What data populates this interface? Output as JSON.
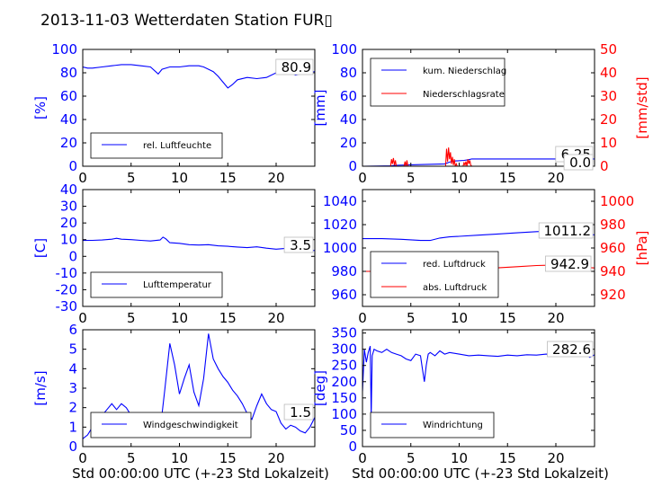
{
  "title": "2013-11-03 Wetterdaten Station FUR▯",
  "colors": {
    "primary": "#0000ff",
    "secondary": "#ff0000",
    "axis": "#000000"
  },
  "chart_data": [
    {
      "type": "line",
      "id": "humidity",
      "ylabel": "[%]",
      "xlabel": "",
      "xlim": [
        0,
        24
      ],
      "ylim": [
        0,
        100
      ],
      "xticks": [
        0,
        5,
        10,
        15,
        20
      ],
      "yticks": [
        0,
        20,
        40,
        60,
        80,
        100
      ],
      "legend": "bottom-left",
      "readout": "80.9",
      "series": [
        {
          "name": "rel. Luftfeuchte",
          "color": "#0000ff",
          "x": [
            0,
            0.5,
            1,
            2,
            3,
            4,
            5,
            6,
            7,
            7.8,
            8.2,
            9,
            10,
            11,
            12,
            12.5,
            13,
            13.5,
            14,
            14.5,
            15,
            15.5,
            16,
            17,
            18,
            19,
            20,
            21,
            22,
            23,
            24
          ],
          "y": [
            85,
            84,
            84,
            85,
            86,
            87,
            87,
            86,
            85,
            79,
            83,
            85,
            85,
            86,
            86,
            85,
            83,
            81,
            77,
            72,
            67,
            70,
            74,
            76,
            75,
            76,
            80,
            82,
            78,
            80,
            81
          ]
        }
      ]
    },
    {
      "type": "line",
      "id": "precip",
      "ylabel": "[mm]",
      "y2label": "[mm/std]",
      "xlabel": "",
      "xlim": [
        0,
        24
      ],
      "ylim": [
        0,
        100
      ],
      "y2lim": [
        0,
        50
      ],
      "xticks": [
        0,
        5,
        10,
        15,
        20
      ],
      "yticks": [
        0,
        20,
        40,
        60,
        80,
        100
      ],
      "y2ticks": [
        0,
        10,
        20,
        30,
        40,
        50
      ],
      "legend": "top-left",
      "readouts": [
        "6.25",
        "0.0"
      ],
      "series": [
        {
          "name": "kum. Niederschlag",
          "color": "#0000ff",
          "axis": "left",
          "x": [
            0,
            3,
            3.3,
            5,
            8.5,
            9,
            9.5,
            10.5,
            11,
            11.3,
            24
          ],
          "y": [
            0,
            0.3,
            0.8,
            1.2,
            2.0,
            3.5,
            4.5,
            5.0,
            5.6,
            6.25,
            6.25
          ]
        },
        {
          "name": "Niederschlagsrate",
          "color": "#ff0000",
          "axis": "right",
          "x": [
            0,
            2.9,
            3.0,
            3.1,
            3.2,
            3.3,
            3.4,
            3.5,
            3.6,
            4.3,
            4.4,
            4.5,
            4.6,
            4.7,
            8.6,
            8.7,
            8.8,
            8.9,
            9.0,
            9.1,
            9.2,
            9.3,
            9.4,
            9.5,
            9.6,
            9.7,
            9.8,
            10.4,
            10.5,
            10.6,
            10.7,
            10.8,
            10.9,
            11.0,
            11.1,
            11.2,
            11.3,
            24
          ],
          "y": [
            0,
            0,
            3,
            1,
            3.5,
            0.5,
            2.5,
            0,
            0,
            0,
            2,
            0,
            2.5,
            0,
            0,
            7.5,
            2,
            8,
            3,
            6,
            1,
            4,
            0.5,
            3,
            0,
            1,
            0,
            0,
            1.5,
            0.5,
            2,
            0,
            3,
            1,
            2.5,
            0.5,
            0,
            0
          ]
        }
      ]
    },
    {
      "type": "line",
      "id": "temperature",
      "ylabel": "[C]",
      "xlabel": "",
      "xlim": [
        0,
        24
      ],
      "ylim": [
        -30,
        40
      ],
      "xticks": [
        0,
        5,
        10,
        15,
        20
      ],
      "yticks": [
        -30,
        -20,
        -10,
        0,
        10,
        20,
        30,
        40
      ],
      "legend": "bottom-left",
      "readout": "3.5",
      "series": [
        {
          "name": "Lufttemperatur",
          "color": "#0000ff",
          "x": [
            0,
            1,
            2,
            3,
            3.5,
            4,
            5,
            6,
            7,
            8,
            8.3,
            8.6,
            9,
            10,
            11,
            12,
            13,
            14,
            15,
            16,
            17,
            18,
            19,
            20,
            21,
            22,
            23,
            24
          ],
          "y": [
            9.5,
            9.6,
            9.8,
            10.3,
            10.8,
            10.3,
            10,
            9.6,
            9.2,
            9.8,
            11.5,
            10.5,
            8.2,
            7.8,
            7.0,
            6.8,
            7.0,
            6.3,
            6.0,
            5.6,
            5.2,
            5.7,
            4.9,
            4.3,
            4.8,
            4.2,
            3.7,
            3.5
          ]
        }
      ]
    },
    {
      "type": "line",
      "id": "pressure",
      "ylabel": "",
      "y2label": "[hPa]",
      "xlabel": "",
      "xlim": [
        0,
        24
      ],
      "ylim": [
        950,
        1050
      ],
      "y2lim": [
        910,
        1010
      ],
      "xticks": [
        0,
        5,
        10,
        15,
        20
      ],
      "yticks": [
        960,
        980,
        1000,
        1020,
        1040
      ],
      "y2ticks": [
        920,
        940,
        960,
        980,
        1000
      ],
      "legend": "bottom-left",
      "readouts": [
        "1011.2",
        "942.9"
      ],
      "series": [
        {
          "name": "red. Luftdruck",
          "color": "#0000ff",
          "axis": "left",
          "x": [
            0,
            2,
            4,
            5,
            6,
            7,
            8,
            9,
            10,
            12,
            14,
            16,
            18,
            20,
            22,
            24
          ],
          "y": [
            1008,
            1008,
            1007.5,
            1007,
            1006.5,
            1006.5,
            1008.5,
            1009.5,
            1010,
            1011,
            1012,
            1013,
            1014,
            1014.5,
            1013,
            1011.2
          ]
        },
        {
          "name": "abs. Luftdruck",
          "color": "#ff0000",
          "axis": "right",
          "x": [
            0,
            2,
            4,
            5,
            6,
            7,
            8,
            9,
            10,
            12,
            14,
            16,
            18,
            20,
            22,
            24
          ],
          "y": [
            940,
            940,
            939.5,
            939,
            938.5,
            938.5,
            940,
            940.8,
            941.5,
            942,
            943,
            944,
            945,
            945.5,
            944,
            942.9
          ]
        }
      ]
    },
    {
      "type": "line",
      "id": "windspeed",
      "ylabel": "[m/s]",
      "xlabel": "Std 00:00:00 UTC (+-23 Std Lokalzeit)",
      "xlim": [
        0,
        24
      ],
      "ylim": [
        0,
        6
      ],
      "xticks": [
        0,
        5,
        10,
        15,
        20
      ],
      "yticks": [
        0,
        1,
        2,
        3,
        4,
        5,
        6
      ],
      "legend": "bottom-left",
      "readout": "1.5",
      "series": [
        {
          "name": "Windgeschwindigkeit",
          "color": "#0000ff",
          "x": [
            0,
            0.5,
            1,
            1.5,
            2,
            2.5,
            3,
            3.5,
            4,
            4.5,
            5,
            5.5,
            6,
            6.5,
            7,
            7.5,
            8,
            8.5,
            9,
            9.5,
            10,
            10.5,
            11,
            11.5,
            12,
            12.5,
            13,
            13.5,
            14,
            14.5,
            15,
            15.5,
            16,
            16.5,
            17,
            17.5,
            18,
            18.5,
            19,
            19.5,
            20,
            20.5,
            21,
            21.5,
            22,
            22.5,
            23,
            23.5,
            24
          ],
          "y": [
            0.4,
            0.6,
            1.0,
            1.2,
            1.6,
            1.9,
            2.2,
            1.9,
            2.2,
            2.0,
            1.6,
            1.2,
            1.0,
            0.9,
            0.8,
            0.7,
            0.8,
            3.0,
            5.3,
            4.2,
            2.7,
            3.5,
            4.2,
            2.8,
            2.1,
            3.5,
            5.8,
            4.5,
            4.0,
            3.6,
            3.3,
            2.9,
            2.6,
            2.2,
            1.7,
            1.4,
            2.1,
            2.7,
            2.2,
            1.9,
            1.8,
            1.2,
            0.9,
            1.1,
            1.0,
            0.8,
            0.7,
            1.0,
            1.5
          ]
        }
      ]
    },
    {
      "type": "line",
      "id": "winddirection",
      "ylabel": "[deg]",
      "xlabel": "Std 00:00:00 UTC (+-23 Std Lokalzeit)",
      "xlim": [
        0,
        24
      ],
      "ylim": [
        0,
        360
      ],
      "xticks": [
        0,
        5,
        10,
        15,
        20
      ],
      "yticks": [
        0,
        50,
        100,
        150,
        200,
        250,
        300,
        350
      ],
      "legend": "bottom-left",
      "readout": "282.6",
      "series": [
        {
          "name": "Windrichtung",
          "color": "#0000ff",
          "x": [
            0,
            0.2,
            0.4,
            0.6,
            0.8,
            0.9,
            1.0,
            1.2,
            1.5,
            2,
            2.5,
            3,
            3.5,
            4,
            4.5,
            5,
            5.5,
            6,
            6.2,
            6.4,
            6.6,
            6.8,
            7,
            7.5,
            8,
            8.5,
            9,
            10,
            11,
            12,
            13,
            14,
            15,
            16,
            17,
            18,
            19,
            20,
            21,
            22,
            23,
            23.5,
            24
          ],
          "y": [
            170,
            300,
            260,
            290,
            310,
            95,
            280,
            300,
            295,
            290,
            300,
            290,
            285,
            280,
            270,
            265,
            285,
            280,
            240,
            200,
            250,
            285,
            290,
            280,
            295,
            285,
            290,
            285,
            280,
            282,
            280,
            278,
            282,
            280,
            283,
            282,
            285,
            281,
            286,
            283,
            290,
            275,
            282.6
          ]
        }
      ]
    }
  ]
}
